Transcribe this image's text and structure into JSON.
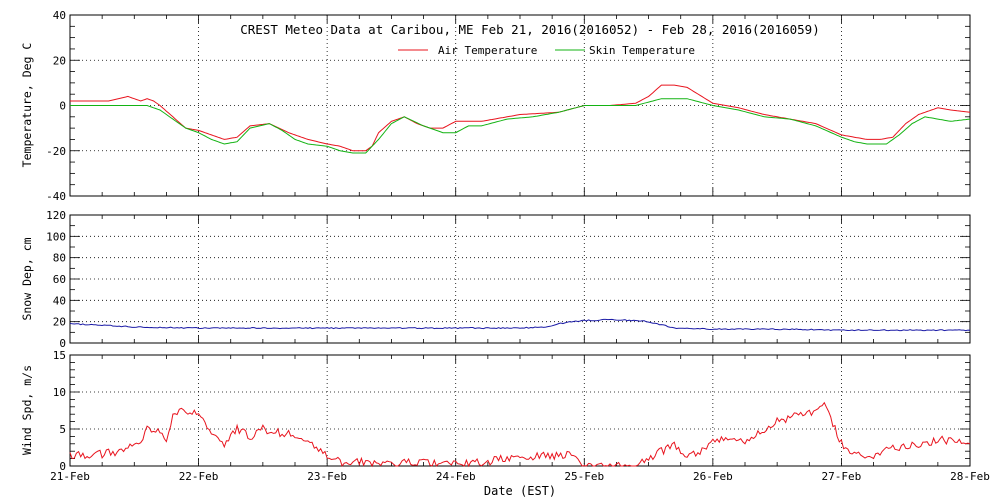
{
  "figure": {
    "title": "CREST Meteo Data at Caribou, ME   Feb 21, 2016(2016052) - Feb 28, 2016(2016059)",
    "xlabel": "Date (EST)",
    "x_ticks": [
      "21-Feb",
      "22-Feb",
      "23-Feb",
      "24-Feb",
      "25-Feb",
      "26-Feb",
      "27-Feb",
      "28-Feb"
    ]
  },
  "chart_data": [
    {
      "type": "line",
      "ylabel": "Temperature, Deg C",
      "ylim": [
        -40,
        40
      ],
      "y_ticks": [
        -40,
        -20,
        0,
        20,
        40
      ],
      "xlim": [
        0,
        7
      ],
      "x_unit": "days since 21-Feb",
      "grid": true,
      "legend_placement": "top-center",
      "series": [
        {
          "name": "Air Temperature",
          "color": "#e8141e",
          "x": [
            0,
            0.3,
            0.45,
            0.55,
            0.6,
            0.65,
            0.7,
            0.8,
            0.9,
            1.0,
            1.1,
            1.2,
            1.3,
            1.4,
            1.55,
            1.7,
            1.85,
            2.0,
            2.1,
            2.2,
            2.3,
            2.35,
            2.4,
            2.5,
            2.6,
            2.7,
            2.8,
            2.9,
            3.0,
            3.2,
            3.5,
            3.8,
            4.0,
            4.2,
            4.4,
            4.5,
            4.6,
            4.7,
            4.8,
            5.0,
            5.2,
            5.4,
            5.6,
            5.8,
            6.0,
            6.1,
            6.2,
            6.3,
            6.4,
            6.5,
            6.6,
            6.75,
            6.85,
            7.0
          ],
          "y": [
            2,
            2,
            4,
            2,
            3,
            2,
            0,
            -5,
            -10,
            -11,
            -13,
            -15,
            -14,
            -9,
            -8,
            -12,
            -15,
            -17,
            -18,
            -20,
            -20,
            -18,
            -12,
            -7,
            -5,
            -8,
            -10,
            -10,
            -7,
            -7,
            -4,
            -3,
            0,
            0,
            1,
            4,
            9,
            9,
            8,
            1,
            -1,
            -4,
            -6,
            -8,
            -13,
            -14,
            -15,
            -15,
            -14,
            -8,
            -4,
            -1,
            -2,
            -3
          ]
        },
        {
          "name": "Skin Temperature",
          "color": "#13b313",
          "x": [
            0,
            0.3,
            0.5,
            0.6,
            0.7,
            0.8,
            0.9,
            1.0,
            1.1,
            1.2,
            1.3,
            1.4,
            1.55,
            1.65,
            1.75,
            1.85,
            2.0,
            2.1,
            2.2,
            2.3,
            2.4,
            2.5,
            2.6,
            2.75,
            2.9,
            3.0,
            3.1,
            3.2,
            3.4,
            3.6,
            3.8,
            4.0,
            4.2,
            4.4,
            4.6,
            4.8,
            5.0,
            5.2,
            5.4,
            5.6,
            5.8,
            6.0,
            6.1,
            6.2,
            6.35,
            6.45,
            6.55,
            6.65,
            6.75,
            6.85,
            7.0
          ],
          "y": [
            0,
            0,
            0,
            0,
            -2,
            -6,
            -10,
            -12,
            -15,
            -17,
            -16,
            -10,
            -8,
            -11,
            -15,
            -17,
            -18,
            -20,
            -21,
            -21,
            -15,
            -8,
            -5,
            -9,
            -12,
            -12,
            -9,
            -9,
            -6,
            -5,
            -3,
            0,
            0,
            0,
            3,
            3,
            0,
            -2,
            -5,
            -6,
            -9,
            -14,
            -16,
            -17,
            -17,
            -13,
            -8,
            -5,
            -6,
            -7,
            -6
          ]
        }
      ]
    },
    {
      "type": "line",
      "ylabel": "Snow Dep, cm",
      "ylim": [
        0,
        120
      ],
      "y_ticks": [
        0,
        20,
        40,
        60,
        80,
        100,
        120
      ],
      "xlim": [
        0,
        7
      ],
      "x_unit": "days since 21-Feb",
      "grid": true,
      "series": [
        {
          "color": "#1a1aa6",
          "x": [
            0,
            0.2,
            0.5,
            1.0,
            1.5,
            2.0,
            2.5,
            3.0,
            3.5,
            3.7,
            3.8,
            3.9,
            4.0,
            4.2,
            4.4,
            4.5,
            4.6,
            4.7,
            5.0,
            5.5,
            6.0,
            6.5,
            7.0
          ],
          "y": [
            18,
            17,
            15,
            14,
            14,
            14,
            14,
            14,
            14,
            15,
            18,
            20,
            21,
            22,
            21,
            20,
            17,
            14,
            13,
            13,
            12,
            12,
            12
          ]
        }
      ]
    },
    {
      "type": "line",
      "ylabel": "Wind Spd, m/s",
      "ylim": [
        0,
        15
      ],
      "y_ticks": [
        0,
        5,
        10,
        15
      ],
      "xlim": [
        0,
        7
      ],
      "x_unit": "days since 21-Feb",
      "grid": true,
      "series": [
        {
          "color": "#e8141e",
          "x": [
            0,
            0.2,
            0.4,
            0.55,
            0.6,
            0.7,
            0.75,
            0.8,
            0.9,
            1.0,
            1.1,
            1.2,
            1.3,
            1.4,
            1.5,
            1.6,
            1.7,
            1.8,
            1.9,
            2.0,
            2.1,
            2.3,
            2.5,
            2.7,
            2.9,
            3.0,
            3.2,
            3.4,
            3.6,
            3.8,
            3.9,
            3.95,
            4.0,
            4.1,
            4.2,
            4.3,
            4.4,
            4.5,
            4.6,
            4.7,
            4.8,
            4.9,
            5.0,
            5.1,
            5.2,
            5.3,
            5.4,
            5.5,
            5.6,
            5.7,
            5.8,
            5.85,
            5.9,
            6.0,
            6.1,
            6.2,
            6.3,
            6.4,
            6.6,
            6.8,
            7.0
          ],
          "y": [
            1.5,
            1.5,
            2,
            3,
            5,
            5,
            3,
            7,
            7.5,
            7,
            4,
            3,
            5,
            4,
            5,
            4.5,
            4.5,
            3.5,
            2.5,
            1.5,
            0.5,
            0.5,
            0.3,
            0.5,
            0.3,
            0.2,
            0.5,
            1,
            1.2,
            1.5,
            1.5,
            1,
            0,
            0,
            0,
            0,
            0,
            1,
            2,
            3,
            1.5,
            2,
            3.5,
            4,
            3,
            4,
            5,
            6,
            6.5,
            7,
            7.5,
            8.5,
            7,
            3,
            1.5,
            1,
            2,
            2.5,
            3,
            3.5,
            3
          ]
        }
      ]
    }
  ]
}
